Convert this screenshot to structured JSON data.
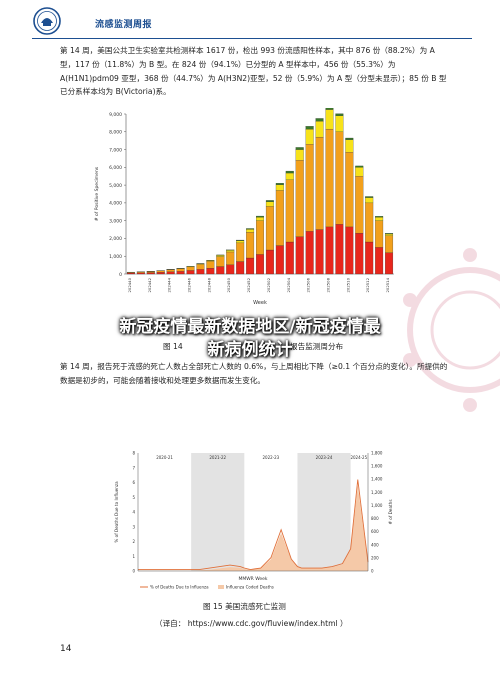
{
  "header": {
    "report_title": "流感监测周报"
  },
  "paragraph1": "第 14 周，美国公共卫生实验室共检测样本 1617 份，检出 993 份流感阳性样本，其中 876 份（88.2%）为 A 型，117 份（11.8%）为 B 型。在 824 份（94.1%）已分型的 A 型样本中，456 份（55.3%）为 A(H1N1)pdm09 亚型，368 份（44.7%）为 A(H3N2)亚型，52 份（5.9%）为 A 型（分型未显示）；85 份 B 型已分系样本均为 B(Victoria)系。",
  "figure14": {
    "caption_left": "图 14",
    "caption_right": "报告监测周分布",
    "xlabel": "Week",
    "ylabel": "# of Positive Specimens"
  },
  "paragraph2": "第 14 周，报告死于流感的死亡人数占全部死亡人数的 0.6%，与上周相比下降（≥0.1 个百分点的变化）。所提供的数据是初步的，可能会随着接收和处理更多数据而发生变化。",
  "figure15": {
    "caption": "图 15   美国流感死亡监测",
    "source": "（译自：  https://www.cdc.gov/fluview/index.html ）",
    "ylabel_left": "% of Deaths Due to Influenza",
    "ylabel_right": "# of Deaths",
    "xlabel": "MMWR Week",
    "legend": [
      "% of Deaths Due to Influenza",
      "Influenza Coded Deaths"
    ],
    "season_labels": [
      "2020-21",
      "2021-22",
      "2022-23",
      "2023-24",
      "2024-25"
    ]
  },
  "banner": {
    "line1": "新冠疫情最新数据地区/新冠疫情最",
    "line2": "新病例统计"
  },
  "page_number": "14",
  "colors": {
    "brand": "#1d4f91",
    "h1n1": "#e8261c",
    "h3n2": "#f2a01c",
    "a_unsubtyped": "#f7e21a",
    "b_victoria": "#3a7a2a",
    "deaths_line": "#e0703a",
    "deaths_area": "#f5c9a8"
  },
  "chart_data": [
    {
      "type": "bar",
      "stacked": true,
      "categories": [
        "202440",
        "202441",
        "202442",
        "202443",
        "202444",
        "202445",
        "202446",
        "202447",
        "202448",
        "202449",
        "202450",
        "202451",
        "202452",
        "202501",
        "202502",
        "202503",
        "202504",
        "202505",
        "202506",
        "202507",
        "202508",
        "202509",
        "202510",
        "202511",
        "202512",
        "202513",
        "202514"
      ],
      "x_tick_labels": [
        "202440",
        "202442",
        "202444",
        "202446",
        "202448",
        "202450",
        "202452",
        "202502",
        "202504",
        "202506",
        "202508",
        "202510",
        "202512",
        "202514"
      ],
      "series": [
        {
          "values": [
            60,
            70,
            80,
            100,
            130,
            150,
            200,
            260,
            330,
            420,
            520,
            700,
            900,
            1100,
            1350,
            1600,
            1800,
            2100,
            2400,
            2500,
            2650,
            2800,
            2650,
            2300,
            1800,
            1500,
            1200
          ]
        },
        {
          "values": [
            40,
            50,
            60,
            80,
            110,
            140,
            200,
            280,
            380,
            560,
            720,
            1050,
            1450,
            1900,
            2450,
            3100,
            3500,
            4300,
            4900,
            5200,
            5500,
            5200,
            4200,
            3200,
            2200,
            1500,
            950
          ]
        },
        {
          "values": [
            5,
            5,
            8,
            10,
            15,
            20,
            30,
            40,
            50,
            70,
            90,
            120,
            160,
            200,
            260,
            320,
            380,
            600,
            850,
            900,
            1100,
            900,
            700,
            500,
            300,
            200,
            100
          ]
        },
        {
          "values": [
            2,
            3,
            3,
            5,
            8,
            10,
            12,
            15,
            20,
            25,
            30,
            40,
            50,
            60,
            80,
            90,
            110,
            120,
            160,
            150,
            140,
            120,
            100,
            80,
            60,
            50,
            40
          ]
        }
      ],
      "ylim": [
        0,
        9000
      ],
      "y_ticks": [
        0,
        1000,
        2000,
        3000,
        4000,
        5000,
        6000,
        7000,
        8000,
        9000
      ]
    },
    {
      "type": "line",
      "xlabel": "MMWR Week",
      "series": [
        {
          "name": "% of Deaths Due to Influenza",
          "x": [
            0,
            10,
            20,
            30,
            40,
            50,
            52,
            60,
            70,
            80,
            90,
            100,
            104,
            110,
            120,
            130,
            140,
            150,
            156,
            160,
            170,
            180,
            190,
            200,
            208,
            215,
            225
          ],
          "values": [
            0.1,
            0.1,
            0.1,
            0.1,
            0.1,
            0.1,
            0.1,
            0.1,
            0.2,
            0.3,
            0.4,
            0.3,
            0.2,
            0.1,
            0.2,
            0.9,
            2.8,
            0.8,
            0.3,
            0.2,
            0.2,
            0.2,
            0.3,
            0.5,
            1.5,
            6.2,
            0.6
          ]
        },
        {
          "name": "Influenza Coded Deaths",
          "x": [
            0,
            10,
            20,
            30,
            40,
            50,
            52,
            60,
            70,
            80,
            90,
            100,
            104,
            110,
            120,
            130,
            140,
            150,
            156,
            160,
            170,
            180,
            190,
            200,
            208,
            215,
            225
          ],
          "values": [
            5,
            5,
            5,
            5,
            5,
            5,
            5,
            10,
            20,
            40,
            60,
            50,
            30,
            20,
            40,
            180,
            580,
            170,
            60,
            40,
            40,
            40,
            60,
            100,
            320,
            1300,
            120
          ]
        }
      ],
      "y_left_ticks": [
        0,
        1,
        2,
        3,
        4,
        5,
        6,
        7,
        8
      ],
      "y_right_ticks": [
        0,
        200,
        400,
        600,
        800,
        1000,
        1200,
        1400,
        1600,
        1800
      ]
    }
  ]
}
